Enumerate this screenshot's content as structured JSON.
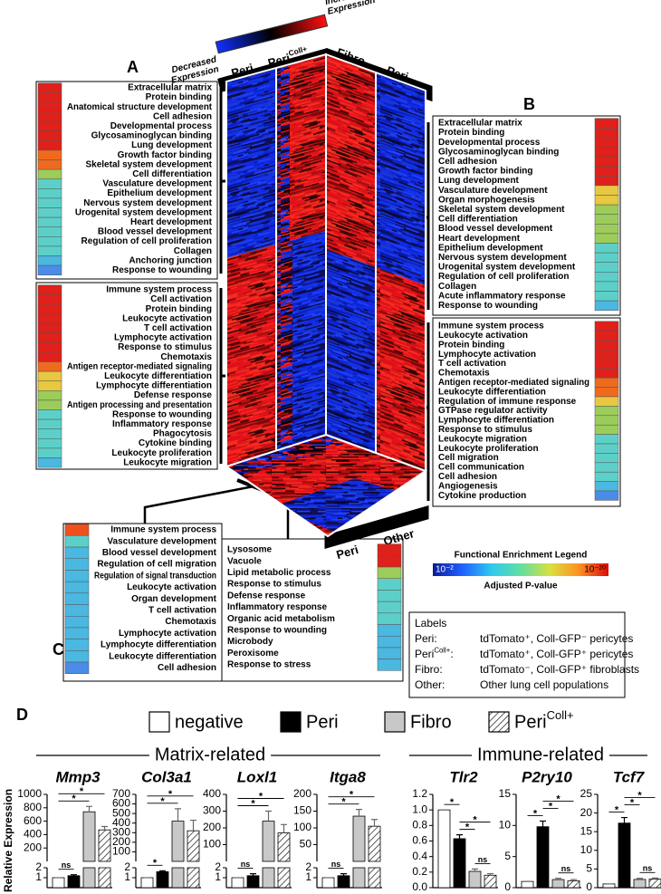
{
  "panel_labels": [
    "A",
    "B",
    "C",
    "D"
  ],
  "heatmap": {
    "legend_low": [
      "Decreased",
      "Expression"
    ],
    "legend_high": [
      "Increased",
      "Expression"
    ],
    "front_columns": [
      {
        "name": "Peri"
      },
      {
        "name": "Peri",
        "sup": "Coll+"
      }
    ],
    "side_columns": [
      "Fibro",
      "Peri"
    ],
    "bottom_columns": [
      "Peri",
      "Other"
    ]
  },
  "lists": {
    "A_top": {
      "terms": [
        "Extracellular matrix",
        "Protein binding",
        "Anatomical structure development",
        "Cell adhesion",
        "Developmental process",
        "Glycosaminoglycan binding",
        "Lung development",
        "Growth factor binding",
        "Skeletal system development",
        "Cell  differentiation",
        "Vasculature development",
        "Epithelium development",
        "Nervous system development",
        "Urogenital system development",
        "Heart development",
        "Blood vessel development",
        "Regulation of cell proliferation",
        "Collagen",
        "Anchoring junction",
        "Response to wounding"
      ],
      "colors": [
        "#e0201a",
        "#e0201a",
        "#e0201a",
        "#e0201a",
        "#e0201a",
        "#e0201a",
        "#e0201a",
        "#f06a1e",
        "#f06a1e",
        "#9ccc5a",
        "#5cd0c8",
        "#5cd0c8",
        "#5cd0c8",
        "#5cd0c8",
        "#5cd0c8",
        "#5cd0c8",
        "#5cd0c8",
        "#5cd0c8",
        "#4ab8e0",
        "#4a8ce8"
      ]
    },
    "A_bottom": {
      "terms": [
        "Immune system process",
        "Cell activation",
        "Protein binding",
        "Leukocyte activation",
        "T cell activation",
        "Lymphocyte activation",
        "Response to stimulus",
        "Chemotaxis",
        "Antigen receptor-mediated signaling",
        "Leukocyte differentiation",
        "Lymphocyte differentiation",
        "Defense response",
        "Antigen processing and presentation",
        "Response to wounding",
        "Inflammatory response",
        "Phagocytosis",
        "Cytokine  binding",
        "Leukocyte proliferation",
        "Leukocyte  migration"
      ],
      "colors": [
        "#e0201a",
        "#e0201a",
        "#e0201a",
        "#e0201a",
        "#e0201a",
        "#e0201a",
        "#e0201a",
        "#e0201a",
        "#f06a1e",
        "#e8c840",
        "#e8c840",
        "#9ccc5a",
        "#9ccc5a",
        "#5cd0c8",
        "#5cd0c8",
        "#5cd0c8",
        "#5cd0c8",
        "#5cd0c8",
        "#4ab8e0"
      ]
    },
    "B_top": {
      "terms": [
        "Extracellular matrix",
        "Protein binding",
        "Developmental process",
        "Glycosaminoglycan binding",
        "Cell adhesion",
        "Growth factor binding",
        "Lung development",
        "Vasculature development",
        "Organ morphogenesis",
        "Skeletal system development",
        "Cell  differentiation",
        "Blood vessel development",
        "Heart development",
        "Epithelium development",
        "Nervous system development",
        "Urogenital system development",
        "Regulation of cell proliferation",
        "Collagen",
        "Acute inflammatory response",
        "Response to wounding"
      ],
      "colors": [
        "#e0201a",
        "#e0201a",
        "#e0201a",
        "#e0201a",
        "#e0201a",
        "#e0201a",
        "#e0201a",
        "#e8c840",
        "#e8c840",
        "#9ccc5a",
        "#9ccc5a",
        "#9ccc5a",
        "#9ccc5a",
        "#5cd0c8",
        "#5cd0c8",
        "#5cd0c8",
        "#5cd0c8",
        "#5cd0c8",
        "#5cd0c8",
        "#4ab8e0"
      ]
    },
    "B_bottom": {
      "terms": [
        "Immune system process",
        "Leukocyte activation",
        "Protein binding",
        "Lymphocyte activation",
        "T cell activation",
        "Chemotaxis",
        "Antigen receptor-mediated signaling",
        "Leukocyte differentiation",
        "Regulation of immune response",
        "GTPase regulator activity",
        "Lymphocyte differentiation",
        "Response to  stimulus",
        "Leukocyte  migration",
        "Leukocyte proliferation",
        "Cell migration",
        "Cell communication",
        "Cell adhesion",
        "Angiogenesis",
        "Cytokine production"
      ],
      "colors": [
        "#e0201a",
        "#e0201a",
        "#e0201a",
        "#e0201a",
        "#e0201a",
        "#e0201a",
        "#f06a1e",
        "#f06a1e",
        "#e8c840",
        "#9ccc5a",
        "#9ccc5a",
        "#9ccc5a",
        "#5cd0c8",
        "#5cd0c8",
        "#5cd0c8",
        "#5cd0c8",
        "#5cd0c8",
        "#4ab8e0",
        "#4a8ce8"
      ]
    },
    "C_left": {
      "terms": [
        "Immune system process",
        "Vasculature development",
        "Blood vessel development",
        "Regulation of cell migration",
        "Regulation of signal transduction",
        "Leukocyte activation",
        "Organ development",
        "T cell activation",
        "Chemotaxis",
        "Lymphocyte activation",
        "Lymphocyte differentiation",
        "Leukocyte differentiation",
        "Cell adhesion"
      ],
      "colors": [
        "#f0501e",
        "#5cd0c8",
        "#4ab8e0",
        "#4ab8e0",
        "#4ab8e0",
        "#4ab8e0",
        "#4ab8e0",
        "#4ab8e0",
        "#4ab8e0",
        "#4ab8e0",
        "#4ab8e0",
        "#4ab8e0",
        "#4a8ce8"
      ]
    },
    "C_right": {
      "terms": [
        "Lysosome",
        "Vacuole",
        "Lipid metabolic process",
        "Response to stimulus",
        "Defense response",
        "Inflammatory response",
        "Organic acid metabolism",
        "Response to wounding",
        "Microbody",
        "Peroxisome",
        "Response to stress"
      ],
      "colors": [
        "#e0201a",
        "#e0201a",
        "#9ccc5a",
        "#5cd0c8",
        "#5cd0c8",
        "#5cd0c8",
        "#5cd0c8",
        "#4ab8e0",
        "#4ab8e0",
        "#4ab8e0",
        "#4ab8e0"
      ]
    }
  },
  "enrichment_legend": {
    "title": "Functional Enrichment Legend",
    "low": "10⁻²",
    "high": "10⁻²⁰",
    "axis_label": "Adjusted P-value",
    "colors": [
      "#0a1a9a",
      "#2060ff",
      "#30c8f0",
      "#60e0a0",
      "#d8e040",
      "#ff9020",
      "#d80a0a"
    ]
  },
  "labels_box": {
    "title": "Labels",
    "rows": [
      {
        "term": "Peri:",
        "desc": "tdTomato⁺, Coll-GFP⁻ pericytes"
      },
      {
        "term": "Peri",
        "sup": "Coll+",
        "suffix": ":",
        "desc": "tdTomato⁺, Coll-GFP⁺ pericytes"
      },
      {
        "term": "Fibro:",
        "desc": "tdTomato⁻, Coll-GFP⁺ fibroblasts"
      },
      {
        "term": "Other:",
        "desc": "Other lung cell populations"
      }
    ]
  },
  "panel_d": {
    "legend": [
      {
        "name": "negative",
        "fill": "#ffffff"
      },
      {
        "name": "Peri",
        "fill": "#000000"
      },
      {
        "name": "Fibro",
        "fill": "#c8c8c8"
      },
      {
        "name": "Peri",
        "sup": "Coll+",
        "fill": "hatch"
      }
    ],
    "groups": [
      "Matrix-related",
      "Immune-related"
    ],
    "y_label": "Relative Expression"
  },
  "chart_data": [
    {
      "type": "bar",
      "title": "Mmp3",
      "ylim": [
        0,
        1000
      ],
      "yticks": [
        200,
        400,
        600,
        800,
        1000
      ],
      "lower_ylim": [
        0,
        2
      ],
      "lower_yticks": [
        1,
        2
      ],
      "values": [
        1,
        1.2,
        740,
        470
      ],
      "errors": [
        0,
        0.1,
        80,
        50
      ],
      "significance": [
        {
          "bars": [
            0,
            1
          ],
          "label": "ns"
        },
        {
          "bars": [
            0,
            2
          ],
          "label": "*"
        },
        {
          "bars": [
            0,
            3
          ],
          "label": "*"
        }
      ]
    },
    {
      "type": "bar",
      "title": "Col3a1",
      "ylim": [
        0,
        700
      ],
      "yticks": [
        100,
        200,
        300,
        400,
        500,
        600,
        700
      ],
      "lower_ylim": [
        0,
        2
      ],
      "lower_yticks": [
        1,
        2
      ],
      "values": [
        1,
        1.6,
        420,
        320
      ],
      "errors": [
        0,
        0.1,
        130,
        110
      ],
      "significance": [
        {
          "bars": [
            0,
            1
          ],
          "label": "*"
        },
        {
          "bars": [
            0,
            2
          ],
          "label": "*"
        },
        {
          "bars": [
            0,
            3
          ],
          "label": "*"
        }
      ]
    },
    {
      "type": "bar",
      "title": "Loxl1",
      "ylim": [
        0,
        400
      ],
      "yticks": [
        100,
        200,
        300,
        400
      ],
      "lower_ylim": [
        0,
        2
      ],
      "lower_yticks": [
        1,
        2
      ],
      "values": [
        1,
        1.2,
        240,
        170
      ],
      "errors": [
        0,
        0.2,
        60,
        50
      ],
      "significance": [
        {
          "bars": [
            0,
            1
          ],
          "label": "ns"
        },
        {
          "bars": [
            0,
            2
          ],
          "label": "*"
        },
        {
          "bars": [
            0,
            3
          ],
          "label": "*"
        }
      ]
    },
    {
      "type": "bar",
      "title": "Itga8",
      "ylim": [
        0,
        200
      ],
      "yticks": [
        50,
        100,
        150,
        200
      ],
      "lower_ylim": [
        0,
        2
      ],
      "lower_yticks": [
        1,
        2
      ],
      "values": [
        1,
        1.2,
        135,
        105
      ],
      "errors": [
        0,
        0.2,
        20,
        20
      ],
      "significance": [
        {
          "bars": [
            0,
            1
          ],
          "label": "ns"
        },
        {
          "bars": [
            0,
            2
          ],
          "label": "*"
        },
        {
          "bars": [
            0,
            3
          ],
          "label": "*"
        }
      ]
    },
    {
      "type": "bar",
      "title": "Tlr2",
      "ylim": [
        0,
        1.2
      ],
      "yticks": [
        {
          "value": 0,
          "label": "0.0"
        },
        0.2,
        0.4,
        0.6,
        0.8,
        {
          "value": 1,
          "label": "1.0"
        },
        1.2
      ],
      "values": [
        1,
        0.63,
        0.21,
        0.16
      ],
      "errors": [
        0,
        0.05,
        0.03,
        0.02
      ],
      "significance": [
        {
          "bars": [
            0,
            1
          ],
          "label": "*"
        },
        {
          "bars": [
            1,
            2
          ],
          "label": "*"
        },
        {
          "bars": [
            1,
            3
          ],
          "label": "*"
        },
        {
          "bars": [
            2,
            3
          ],
          "label": "ns"
        }
      ]
    },
    {
      "type": "bar",
      "title": "P2ry10",
      "ylim": [
        0,
        15
      ],
      "yticks": [
        0,
        5,
        10,
        15
      ],
      "values": [
        1,
        9.8,
        1.3,
        1.1
      ],
      "errors": [
        0,
        0.9,
        0.2,
        0.2
      ],
      "significance": [
        {
          "bars": [
            0,
            1
          ],
          "label": "*"
        },
        {
          "bars": [
            1,
            2
          ],
          "label": "*"
        },
        {
          "bars": [
            1,
            3
          ],
          "label": "*"
        },
        {
          "bars": [
            2,
            3
          ],
          "label": "ns"
        }
      ]
    },
    {
      "type": "bar",
      "title": "Tcf7",
      "ylim": [
        0,
        25
      ],
      "yticks": [
        0,
        5,
        10,
        15,
        20,
        25
      ],
      "values": [
        1,
        17.3,
        2.2,
        2.3
      ],
      "errors": [
        0,
        1.5,
        0.3,
        0.3
      ],
      "significance": [
        {
          "bars": [
            0,
            1
          ],
          "label": "*"
        },
        {
          "bars": [
            1,
            2
          ],
          "label": "*"
        },
        {
          "bars": [
            1,
            3
          ],
          "label": "*"
        },
        {
          "bars": [
            2,
            3
          ],
          "label": "ns"
        }
      ]
    }
  ]
}
